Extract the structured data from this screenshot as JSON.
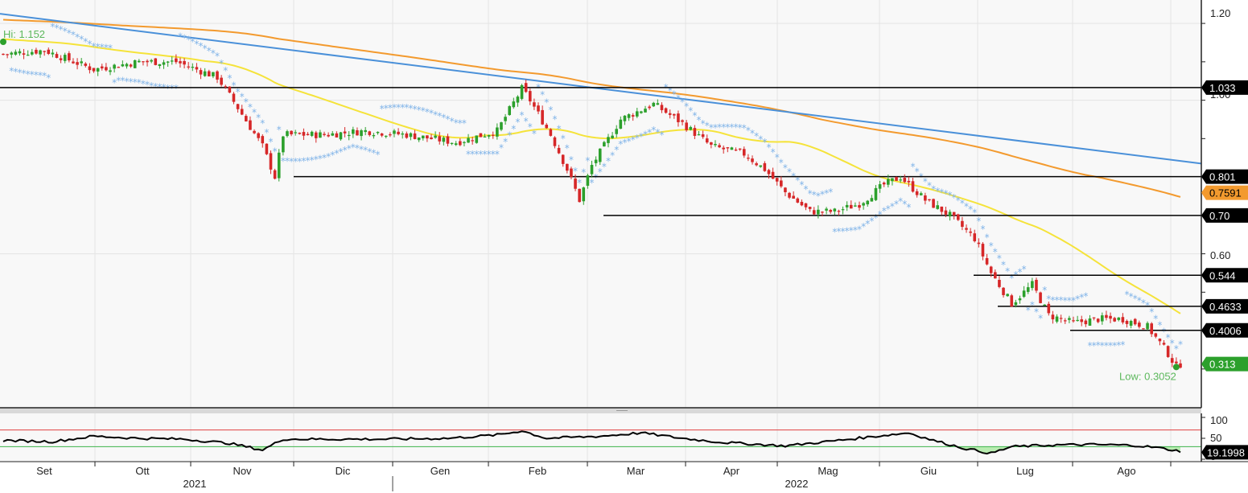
{
  "chart_data": {
    "type": "candlestick",
    "title": "",
    "x_months": [
      "Set",
      "Ott",
      "Nov",
      "Dic",
      "Gen",
      "Feb",
      "Mar",
      "Apr",
      "Mag",
      "Giu",
      "Lug",
      "Ago"
    ],
    "x_years": [
      "2021",
      "2022"
    ],
    "y_ticks": [
      "1.20",
      "1.00",
      "0.60"
    ],
    "ylim": [
      0.22,
      1.24
    ],
    "colors": {
      "up": "#2ca02c",
      "down": "#d62728",
      "ma_fast": "#f5e33a",
      "ma_slow": "#f39a2e",
      "trendline": "#4a90d9",
      "sar": "#7fb3e8",
      "rsi": "#000000",
      "rsi_upper": "#e04040",
      "rsi_lower": "#3cb44b"
    },
    "high_annotation": {
      "label": "Hi: 1.152",
      "value": 1.152
    },
    "low_annotation": {
      "label": "Low: 0.3052",
      "value": 0.3052
    },
    "horizontal_levels": [
      {
        "label": "1.033",
        "value": 1.033
      },
      {
        "label": "0.801",
        "value": 0.801
      },
      {
        "label": "0.70",
        "value": 0.7
      },
      {
        "label": "0.544",
        "value": 0.544
      },
      {
        "label": "0.4633",
        "value": 0.4633
      },
      {
        "label": "0.4006",
        "value": 0.4006
      }
    ],
    "value_tags": [
      {
        "label": "0.7591",
        "value": 0.7591,
        "bg": "#f39a2e"
      },
      {
        "label": "0.313",
        "value": 0.313,
        "bg": "#2ca02c"
      }
    ],
    "price_path": [
      [
        0,
        1.12
      ],
      [
        10,
        1.13
      ],
      [
        22,
        1.08
      ],
      [
        33,
        1.1
      ],
      [
        42,
        1.1
      ],
      [
        52,
        1.06
      ],
      [
        57,
        0.98
      ],
      [
        63,
        0.88
      ],
      [
        66,
        0.8
      ],
      [
        68,
        0.91
      ],
      [
        78,
        0.91
      ],
      [
        88,
        0.92
      ],
      [
        98,
        0.91
      ],
      [
        110,
        0.89
      ],
      [
        120,
        0.92
      ],
      [
        126,
        1.03
      ],
      [
        128,
        1.0
      ],
      [
        133,
        0.91
      ],
      [
        137,
        0.82
      ],
      [
        140,
        0.74
      ],
      [
        143,
        0.83
      ],
      [
        150,
        0.95
      ],
      [
        158,
        0.99
      ],
      [
        165,
        0.94
      ],
      [
        172,
        0.88
      ],
      [
        180,
        0.86
      ],
      [
        185,
        0.82
      ],
      [
        190,
        0.76
      ],
      [
        196,
        0.71
      ],
      [
        202,
        0.71
      ],
      [
        208,
        0.73
      ],
      [
        214,
        0.78
      ],
      [
        218,
        0.8
      ],
      [
        224,
        0.74
      ],
      [
        230,
        0.7
      ],
      [
        236,
        0.64
      ],
      [
        240,
        0.55
      ],
      [
        245,
        0.47
      ],
      [
        250,
        0.52
      ],
      [
        254,
        0.44
      ],
      [
        260,
        0.42
      ],
      [
        266,
        0.43
      ],
      [
        272,
        0.43
      ],
      [
        278,
        0.41
      ],
      [
        283,
        0.34
      ],
      [
        285,
        0.305
      ],
      [
        286,
        0.313
      ]
    ],
    "rsi": {
      "ylim": [
        0,
        100
      ],
      "y_ticks": [
        "100",
        "50",
        "0"
      ],
      "upper_level": 70,
      "lower_level": 30,
      "last_label": "19.1998",
      "path": [
        [
          0,
          45
        ],
        [
          12,
          42
        ],
        [
          22,
          55
        ],
        [
          33,
          50
        ],
        [
          44,
          48
        ],
        [
          55,
          38
        ],
        [
          63,
          22
        ],
        [
          68,
          48
        ],
        [
          80,
          48
        ],
        [
          94,
          48
        ],
        [
          108,
          50
        ],
        [
          120,
          58
        ],
        [
          126,
          68
        ],
        [
          132,
          50
        ],
        [
          145,
          55
        ],
        [
          155,
          63
        ],
        [
          165,
          50
        ],
        [
          175,
          40
        ],
        [
          190,
          32
        ],
        [
          200,
          42
        ],
        [
          214,
          57
        ],
        [
          220,
          63
        ],
        [
          226,
          45
        ],
        [
          234,
          25
        ],
        [
          240,
          14
        ],
        [
          245,
          30
        ],
        [
          255,
          34
        ],
        [
          265,
          35
        ],
        [
          275,
          33
        ],
        [
          280,
          28
        ],
        [
          286,
          19.2
        ]
      ]
    }
  }
}
